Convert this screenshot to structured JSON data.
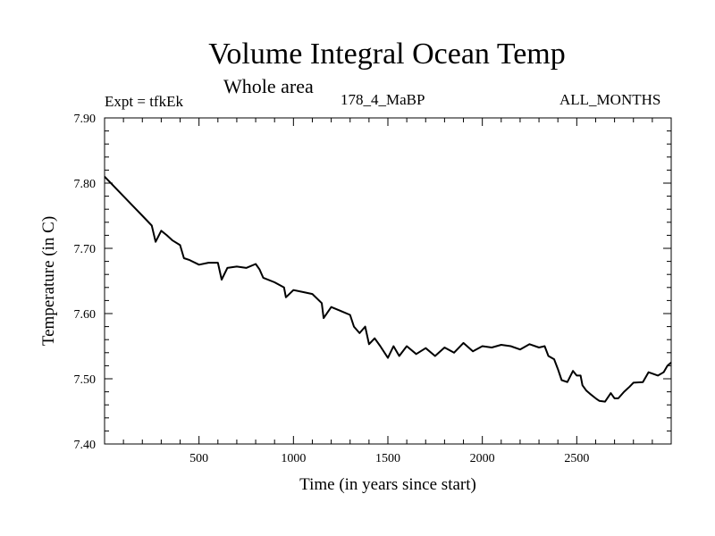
{
  "header": {
    "title": "Volume Integral Ocean Temp",
    "subtitle": "Whole area",
    "experiment": "Expt = tfkEk",
    "run": "178_4_MaBP",
    "months": "ALL_MONTHS"
  },
  "chart_data": {
    "type": "line",
    "title": "Volume Integral Ocean Temp",
    "subtitle": "Whole area",
    "xlabel": "Time (in years since start)",
    "ylabel": "Temperature (in C)",
    "xlim": [
      0,
      3000
    ],
    "ylim": [
      7.4,
      7.9
    ],
    "x_ticks": [
      500,
      1000,
      1500,
      2000,
      2500
    ],
    "x_tick_labels": [
      "500",
      "1000",
      "1500",
      "2000",
      "2500"
    ],
    "y_ticks": [
      7.4,
      7.5,
      7.6,
      7.7,
      7.8,
      7.9
    ],
    "y_tick_labels": [
      "7.40",
      "7.50",
      "7.60",
      "7.70",
      "7.80",
      "7.90"
    ],
    "grid": false,
    "legend": "none",
    "series": [
      {
        "color": "#000000",
        "x": [
          0,
          50,
          100,
          150,
          200,
          250,
          270,
          300,
          330,
          360,
          400,
          420,
          450,
          500,
          550,
          600,
          620,
          650,
          700,
          750,
          800,
          820,
          840,
          900,
          950,
          960,
          1000,
          1050,
          1100,
          1150,
          1160,
          1200,
          1250,
          1300,
          1320,
          1350,
          1380,
          1400,
          1430,
          1460,
          1500,
          1530,
          1560,
          1600,
          1650,
          1700,
          1750,
          1800,
          1850,
          1900,
          1950,
          2000,
          2050,
          2100,
          2150,
          2200,
          2250,
          2300,
          2330,
          2350,
          2380,
          2400,
          2420,
          2450,
          2480,
          2500,
          2520,
          2530,
          2550,
          2570,
          2600,
          2620,
          2650,
          2680,
          2700,
          2720,
          2750,
          2780,
          2800,
          2850,
          2880,
          2900,
          2930,
          2960,
          2980,
          3000
        ],
        "y": [
          7.81,
          7.795,
          7.78,
          7.765,
          7.75,
          7.735,
          7.71,
          7.727,
          7.72,
          7.712,
          7.705,
          7.685,
          7.682,
          7.675,
          7.678,
          7.678,
          7.652,
          7.67,
          7.672,
          7.67,
          7.676,
          7.668,
          7.655,
          7.648,
          7.64,
          7.625,
          7.636,
          7.633,
          7.63,
          7.616,
          7.593,
          7.61,
          7.604,
          7.598,
          7.58,
          7.57,
          7.58,
          7.553,
          7.562,
          7.55,
          7.532,
          7.55,
          7.535,
          7.55,
          7.538,
          7.547,
          7.535,
          7.548,
          7.54,
          7.555,
          7.542,
          7.55,
          7.548,
          7.552,
          7.55,
          7.545,
          7.553,
          7.548,
          7.55,
          7.535,
          7.53,
          7.515,
          7.498,
          7.495,
          7.512,
          7.505,
          7.505,
          7.49,
          7.482,
          7.477,
          7.47,
          7.466,
          7.465,
          7.478,
          7.47,
          7.47,
          7.48,
          7.488,
          7.494,
          7.495,
          7.51,
          7.508,
          7.505,
          7.51,
          7.52,
          7.525
        ]
      }
    ]
  }
}
